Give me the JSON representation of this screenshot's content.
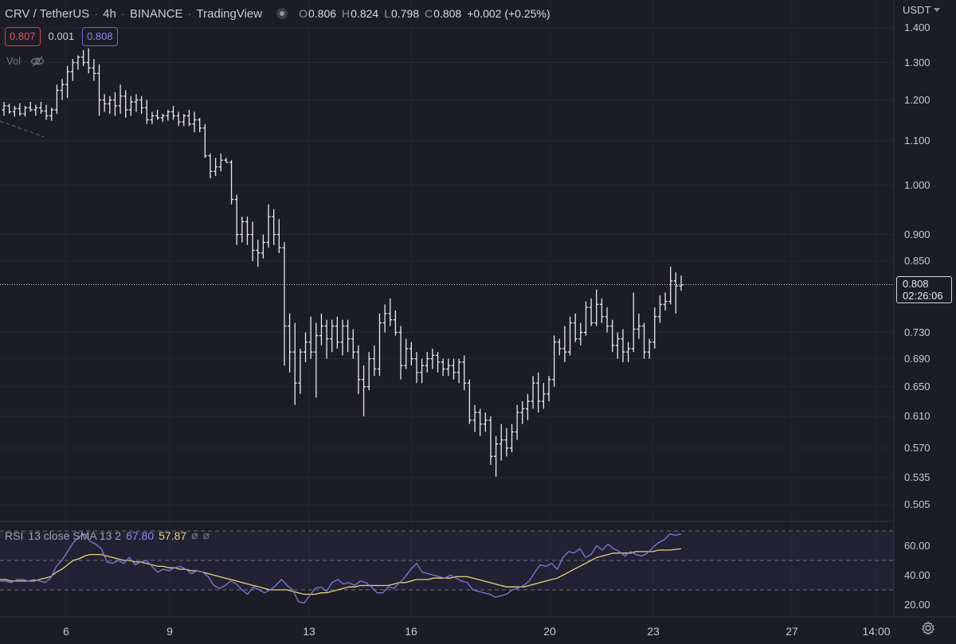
{
  "header": {
    "symbol": "CRV / TetherUS",
    "interval": "4h",
    "exchange": "BINANCE",
    "source": "TradingView",
    "ohlc": {
      "o_label": "O",
      "o": "0.806",
      "h_label": "H",
      "h": "0.824",
      "l_label": "L",
      "l": "0.798",
      "c_label": "C",
      "c": "0.808",
      "change": "+0.002 (+0.25%)"
    }
  },
  "quote": {
    "sell": "0.807",
    "spread": "0.001",
    "buy": "0.808"
  },
  "volume": {
    "label": "Vol",
    "icon": "eye-crossed-icon"
  },
  "currency": "USDT",
  "last_price": {
    "price": "0.808",
    "countdown": "02:26:06"
  },
  "rsi": {
    "label": "RSI",
    "params": "13 close SMA 13 2",
    "value": "67.80",
    "sma_value": "57.87",
    "p1": "⌀",
    "p2": "⌀"
  },
  "colors": {
    "background": "#1c1c26",
    "bars": "#e8e9ee",
    "rsi_line": "#7e78d8",
    "rsi_sma": "#e4d67a",
    "sell": "#d24242",
    "buy": "#6b66d6"
  },
  "settings_icon": "gear-icon",
  "chart_data": {
    "type": "ohlc",
    "price_axis": {
      "scale": "log",
      "ticks": [
        "1.400",
        "1.300",
        "1.200",
        "1.100",
        "1.000",
        "0.900",
        "0.850",
        "0.730",
        "0.690",
        "0.650",
        "0.610",
        "0.570",
        "0.535",
        "0.505"
      ]
    },
    "time_axis": {
      "ticks": [
        "6",
        "9",
        "13",
        "16",
        "20",
        "23",
        "27",
        "14:00"
      ]
    },
    "bars": [
      {
        "o": 1.175,
        "h": 1.195,
        "l": 1.16,
        "c": 1.185
      },
      {
        "o": 1.185,
        "h": 1.19,
        "l": 1.165,
        "c": 1.17
      },
      {
        "o": 1.17,
        "h": 1.185,
        "l": 1.158,
        "c": 1.178
      },
      {
        "o": 1.178,
        "h": 1.192,
        "l": 1.16,
        "c": 1.165
      },
      {
        "o": 1.165,
        "h": 1.185,
        "l": 1.158,
        "c": 1.18
      },
      {
        "o": 1.18,
        "h": 1.195,
        "l": 1.17,
        "c": 1.175
      },
      {
        "o": 1.175,
        "h": 1.188,
        "l": 1.16,
        "c": 1.18
      },
      {
        "o": 1.18,
        "h": 1.195,
        "l": 1.165,
        "c": 1.172
      },
      {
        "o": 1.172,
        "h": 1.188,
        "l": 1.15,
        "c": 1.16
      },
      {
        "o": 1.16,
        "h": 1.18,
        "l": 1.148,
        "c": 1.175
      },
      {
        "o": 1.175,
        "h": 1.24,
        "l": 1.165,
        "c": 1.225
      },
      {
        "o": 1.225,
        "h": 1.255,
        "l": 1.2,
        "c": 1.24
      },
      {
        "o": 1.24,
        "h": 1.29,
        "l": 1.205,
        "c": 1.275
      },
      {
        "o": 1.275,
        "h": 1.31,
        "l": 1.25,
        "c": 1.3
      },
      {
        "o": 1.3,
        "h": 1.32,
        "l": 1.28,
        "c": 1.315
      },
      {
        "o": 1.315,
        "h": 1.335,
        "l": 1.29,
        "c": 1.3
      },
      {
        "o": 1.3,
        "h": 1.34,
        "l": 1.27,
        "c": 1.285
      },
      {
        "o": 1.285,
        "h": 1.31,
        "l": 1.25,
        "c": 1.27
      },
      {
        "o": 1.27,
        "h": 1.295,
        "l": 1.16,
        "c": 1.2
      },
      {
        "o": 1.2,
        "h": 1.215,
        "l": 1.17,
        "c": 1.19
      },
      {
        "o": 1.19,
        "h": 1.21,
        "l": 1.165,
        "c": 1.2
      },
      {
        "o": 1.2,
        "h": 1.22,
        "l": 1.16,
        "c": 1.185
      },
      {
        "o": 1.185,
        "h": 1.24,
        "l": 1.165,
        "c": 1.21
      },
      {
        "o": 1.21,
        "h": 1.225,
        "l": 1.155,
        "c": 1.175
      },
      {
        "o": 1.175,
        "h": 1.21,
        "l": 1.16,
        "c": 1.195
      },
      {
        "o": 1.195,
        "h": 1.215,
        "l": 1.17,
        "c": 1.2
      },
      {
        "o": 1.2,
        "h": 1.21,
        "l": 1.165,
        "c": 1.18
      },
      {
        "o": 1.18,
        "h": 1.2,
        "l": 1.14,
        "c": 1.15
      },
      {
        "o": 1.15,
        "h": 1.17,
        "l": 1.14,
        "c": 1.16
      },
      {
        "o": 1.16,
        "h": 1.175,
        "l": 1.15,
        "c": 1.155
      },
      {
        "o": 1.155,
        "h": 1.165,
        "l": 1.145,
        "c": 1.16
      },
      {
        "o": 1.16,
        "h": 1.175,
        "l": 1.148,
        "c": 1.17
      },
      {
        "o": 1.17,
        "h": 1.185,
        "l": 1.15,
        "c": 1.16
      },
      {
        "o": 1.16,
        "h": 1.17,
        "l": 1.135,
        "c": 1.145
      },
      {
        "o": 1.145,
        "h": 1.165,
        "l": 1.135,
        "c": 1.16
      },
      {
        "o": 1.16,
        "h": 1.175,
        "l": 1.135,
        "c": 1.14
      },
      {
        "o": 1.14,
        "h": 1.17,
        "l": 1.12,
        "c": 1.15
      },
      {
        "o": 1.15,
        "h": 1.155,
        "l": 1.12,
        "c": 1.13
      },
      {
        "o": 1.13,
        "h": 1.14,
        "l": 1.06,
        "c": 1.065
      },
      {
        "o": 1.065,
        "h": 1.07,
        "l": 1.015,
        "c": 1.03
      },
      {
        "o": 1.03,
        "h": 1.06,
        "l": 1.02,
        "c": 1.04
      },
      {
        "o": 1.04,
        "h": 1.07,
        "l": 1.03,
        "c": 1.055
      },
      {
        "o": 1.055,
        "h": 1.06,
        "l": 1.05,
        "c": 1.05
      },
      {
        "o": 1.05,
        "h": 1.055,
        "l": 0.96,
        "c": 0.97
      },
      {
        "o": 0.97,
        "h": 0.98,
        "l": 0.88,
        "c": 0.9
      },
      {
        "o": 0.9,
        "h": 0.935,
        "l": 0.885,
        "c": 0.925
      },
      {
        "o": 0.925,
        "h": 0.935,
        "l": 0.88,
        "c": 0.9
      },
      {
        "o": 0.9,
        "h": 0.925,
        "l": 0.85,
        "c": 0.87
      },
      {
        "o": 0.87,
        "h": 0.89,
        "l": 0.84,
        "c": 0.865
      },
      {
        "o": 0.865,
        "h": 0.9,
        "l": 0.855,
        "c": 0.885
      },
      {
        "o": 0.885,
        "h": 0.96,
        "l": 0.875,
        "c": 0.935
      },
      {
        "o": 0.935,
        "h": 0.95,
        "l": 0.88,
        "c": 0.9
      },
      {
        "o": 0.9,
        "h": 0.93,
        "l": 0.865,
        "c": 0.875
      },
      {
        "o": 0.875,
        "h": 0.885,
        "l": 0.68,
        "c": 0.74
      },
      {
        "o": 0.74,
        "h": 0.76,
        "l": 0.67,
        "c": 0.7
      },
      {
        "o": 0.7,
        "h": 0.745,
        "l": 0.625,
        "c": 0.655
      },
      {
        "o": 0.655,
        "h": 0.705,
        "l": 0.64,
        "c": 0.7
      },
      {
        "o": 0.7,
        "h": 0.73,
        "l": 0.685,
        "c": 0.715
      },
      {
        "o": 0.715,
        "h": 0.755,
        "l": 0.69,
        "c": 0.7
      },
      {
        "o": 0.7,
        "h": 0.745,
        "l": 0.635,
        "c": 0.725
      },
      {
        "o": 0.725,
        "h": 0.76,
        "l": 0.71,
        "c": 0.74
      },
      {
        "o": 0.74,
        "h": 0.75,
        "l": 0.69,
        "c": 0.72
      },
      {
        "o": 0.72,
        "h": 0.75,
        "l": 0.7,
        "c": 0.74
      },
      {
        "o": 0.74,
        "h": 0.755,
        "l": 0.705,
        "c": 0.715
      },
      {
        "o": 0.715,
        "h": 0.75,
        "l": 0.695,
        "c": 0.74
      },
      {
        "o": 0.74,
        "h": 0.75,
        "l": 0.7,
        "c": 0.72
      },
      {
        "o": 0.72,
        "h": 0.735,
        "l": 0.69,
        "c": 0.7
      },
      {
        "o": 0.7,
        "h": 0.71,
        "l": 0.64,
        "c": 0.66
      },
      {
        "o": 0.66,
        "h": 0.68,
        "l": 0.61,
        "c": 0.65
      },
      {
        "o": 0.65,
        "h": 0.7,
        "l": 0.645,
        "c": 0.69
      },
      {
        "o": 0.69,
        "h": 0.71,
        "l": 0.665,
        "c": 0.675
      },
      {
        "o": 0.675,
        "h": 0.76,
        "l": 0.665,
        "c": 0.745
      },
      {
        "o": 0.745,
        "h": 0.775,
        "l": 0.73,
        "c": 0.76
      },
      {
        "o": 0.76,
        "h": 0.785,
        "l": 0.74,
        "c": 0.75
      },
      {
        "o": 0.75,
        "h": 0.765,
        "l": 0.725,
        "c": 0.73
      },
      {
        "o": 0.73,
        "h": 0.74,
        "l": 0.66,
        "c": 0.68
      },
      {
        "o": 0.68,
        "h": 0.72,
        "l": 0.675,
        "c": 0.705
      },
      {
        "o": 0.705,
        "h": 0.715,
        "l": 0.68,
        "c": 0.69
      },
      {
        "o": 0.69,
        "h": 0.7,
        "l": 0.655,
        "c": 0.67
      },
      {
        "o": 0.67,
        "h": 0.69,
        "l": 0.655,
        "c": 0.68
      },
      {
        "o": 0.68,
        "h": 0.7,
        "l": 0.67,
        "c": 0.69
      },
      {
        "o": 0.69,
        "h": 0.705,
        "l": 0.675,
        "c": 0.695
      },
      {
        "o": 0.695,
        "h": 0.7,
        "l": 0.67,
        "c": 0.685
      },
      {
        "o": 0.685,
        "h": 0.69,
        "l": 0.665,
        "c": 0.675
      },
      {
        "o": 0.675,
        "h": 0.69,
        "l": 0.665,
        "c": 0.68
      },
      {
        "o": 0.68,
        "h": 0.69,
        "l": 0.66,
        "c": 0.67
      },
      {
        "o": 0.67,
        "h": 0.69,
        "l": 0.655,
        "c": 0.685
      },
      {
        "o": 0.685,
        "h": 0.695,
        "l": 0.645,
        "c": 0.655
      },
      {
        "o": 0.655,
        "h": 0.66,
        "l": 0.6,
        "c": 0.605
      },
      {
        "o": 0.605,
        "h": 0.625,
        "l": 0.59,
        "c": 0.615
      },
      {
        "o": 0.615,
        "h": 0.62,
        "l": 0.585,
        "c": 0.6
      },
      {
        "o": 0.6,
        "h": 0.615,
        "l": 0.59,
        "c": 0.605
      },
      {
        "o": 0.605,
        "h": 0.61,
        "l": 0.55,
        "c": 0.56
      },
      {
        "o": 0.56,
        "h": 0.585,
        "l": 0.536,
        "c": 0.575
      },
      {
        "o": 0.575,
        "h": 0.6,
        "l": 0.555,
        "c": 0.58
      },
      {
        "o": 0.58,
        "h": 0.595,
        "l": 0.56,
        "c": 0.57
      },
      {
        "o": 0.57,
        "h": 0.6,
        "l": 0.565,
        "c": 0.59
      },
      {
        "o": 0.59,
        "h": 0.625,
        "l": 0.58,
        "c": 0.615
      },
      {
        "o": 0.615,
        "h": 0.63,
        "l": 0.6,
        "c": 0.62
      },
      {
        "o": 0.62,
        "h": 0.64,
        "l": 0.605,
        "c": 0.63
      },
      {
        "o": 0.63,
        "h": 0.665,
        "l": 0.62,
        "c": 0.655
      },
      {
        "o": 0.655,
        "h": 0.67,
        "l": 0.615,
        "c": 0.63
      },
      {
        "o": 0.63,
        "h": 0.655,
        "l": 0.62,
        "c": 0.64
      },
      {
        "o": 0.64,
        "h": 0.665,
        "l": 0.63,
        "c": 0.66
      },
      {
        "o": 0.66,
        "h": 0.725,
        "l": 0.65,
        "c": 0.715
      },
      {
        "o": 0.715,
        "h": 0.72,
        "l": 0.695,
        "c": 0.705
      },
      {
        "o": 0.705,
        "h": 0.74,
        "l": 0.685,
        "c": 0.7
      },
      {
        "o": 0.7,
        "h": 0.755,
        "l": 0.695,
        "c": 0.745
      },
      {
        "o": 0.745,
        "h": 0.76,
        "l": 0.715,
        "c": 0.72
      },
      {
        "o": 0.72,
        "h": 0.745,
        "l": 0.71,
        "c": 0.73
      },
      {
        "o": 0.73,
        "h": 0.78,
        "l": 0.725,
        "c": 0.77
      },
      {
        "o": 0.77,
        "h": 0.785,
        "l": 0.74,
        "c": 0.745
      },
      {
        "o": 0.745,
        "h": 0.8,
        "l": 0.74,
        "c": 0.775
      },
      {
        "o": 0.775,
        "h": 0.785,
        "l": 0.745,
        "c": 0.755
      },
      {
        "o": 0.755,
        "h": 0.77,
        "l": 0.73,
        "c": 0.74
      },
      {
        "o": 0.74,
        "h": 0.75,
        "l": 0.7,
        "c": 0.71
      },
      {
        "o": 0.71,
        "h": 0.73,
        "l": 0.69,
        "c": 0.72
      },
      {
        "o": 0.72,
        "h": 0.735,
        "l": 0.685,
        "c": 0.7
      },
      {
        "o": 0.7,
        "h": 0.715,
        "l": 0.685,
        "c": 0.705
      },
      {
        "o": 0.705,
        "h": 0.795,
        "l": 0.7,
        "c": 0.735
      },
      {
        "o": 0.735,
        "h": 0.76,
        "l": 0.72,
        "c": 0.74
      },
      {
        "o": 0.74,
        "h": 0.745,
        "l": 0.69,
        "c": 0.7
      },
      {
        "o": 0.7,
        "h": 0.72,
        "l": 0.69,
        "c": 0.715
      },
      {
        "o": 0.715,
        "h": 0.77,
        "l": 0.705,
        "c": 0.755
      },
      {
        "o": 0.755,
        "h": 0.79,
        "l": 0.745,
        "c": 0.775
      },
      {
        "o": 0.775,
        "h": 0.795,
        "l": 0.765,
        "c": 0.78
      },
      {
        "o": 0.78,
        "h": 0.84,
        "l": 0.775,
        "c": 0.815
      },
      {
        "o": 0.815,
        "h": 0.83,
        "l": 0.76,
        "c": 0.806
      },
      {
        "o": 0.806,
        "h": 0.824,
        "l": 0.798,
        "c": 0.808
      }
    ],
    "rsi": {
      "range": [
        0,
        100
      ],
      "levels": [
        30,
        50,
        70
      ],
      "ticks": [
        "60.00",
        "40.00",
        "20.00"
      ],
      "rsi_values": [
        36,
        36,
        35,
        37,
        37,
        36,
        37,
        36,
        35,
        38,
        46,
        50,
        56,
        62,
        66,
        68,
        63,
        61,
        58,
        49,
        48,
        50,
        48,
        52,
        47,
        49,
        50,
        46,
        42,
        44,
        43,
        45,
        46,
        44,
        41,
        43,
        42,
        39,
        33,
        31,
        33,
        36,
        34,
        30,
        27,
        32,
        30,
        28,
        30,
        33,
        37,
        33,
        30,
        22,
        21,
        26,
        31,
        32,
        29,
        35,
        37,
        34,
        35,
        33,
        36,
        35,
        32,
        28,
        28,
        32,
        31,
        35,
        39,
        44,
        48,
        42,
        41,
        40,
        39,
        38,
        40,
        38,
        36,
        35,
        30,
        29,
        28,
        27,
        25,
        26,
        27,
        30,
        31,
        33,
        36,
        42,
        47,
        46,
        48,
        44,
        52,
        56,
        55,
        58,
        52,
        54,
        60,
        57,
        61,
        58,
        56,
        53,
        56,
        54,
        53,
        55,
        59,
        62,
        64,
        68,
        67,
        68
      ],
      "sma_values": [
        37,
        37,
        36,
        36,
        36,
        36,
        36,
        37,
        38,
        39,
        42,
        44,
        47,
        50,
        51,
        53,
        54,
        54,
        54,
        53,
        52,
        51,
        50,
        50,
        49,
        49,
        48,
        47,
        46,
        46,
        45,
        45,
        44,
        44,
        43,
        43,
        42,
        41,
        40,
        39,
        38,
        37,
        36,
        35,
        34,
        33,
        32,
        31,
        30,
        30,
        30,
        30,
        29,
        28,
        27,
        27,
        27,
        28,
        28,
        29,
        30,
        31,
        32,
        32,
        33,
        33,
        33,
        33,
        33,
        33,
        34,
        35,
        35,
        36,
        37,
        37,
        37,
        38,
        38,
        38,
        38,
        39,
        39,
        39,
        38,
        37,
        36,
        35,
        34,
        33,
        32,
        32,
        32,
        32,
        33,
        34,
        35,
        36,
        37,
        38,
        40,
        42,
        44,
        46,
        48,
        50,
        52,
        53,
        54,
        55,
        55,
        55,
        55,
        56,
        56,
        56,
        56,
        57,
        57,
        57,
        57.5,
        57.87
      ]
    }
  }
}
